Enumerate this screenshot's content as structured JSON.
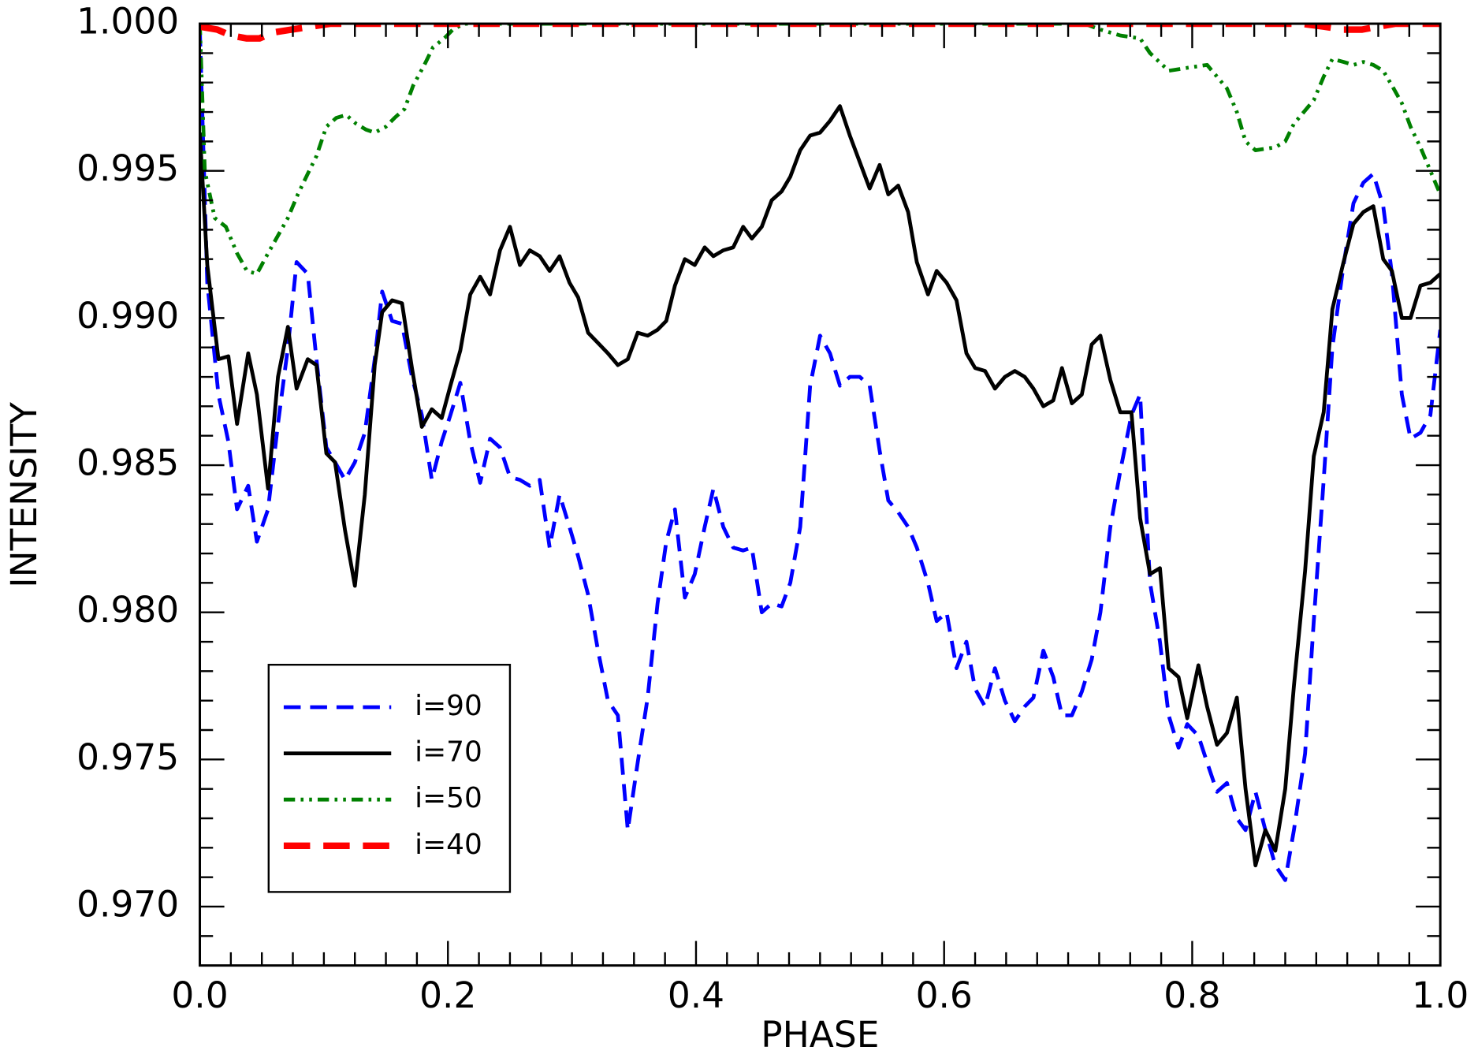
{
  "chart_data": {
    "type": "line",
    "x_label": "PHASE",
    "y_label": "INTENSITY",
    "xlim": [
      0,
      1
    ],
    "ylim": [
      0.968,
      1.0
    ],
    "xticks": [
      {
        "value": 0,
        "label": "0.0"
      },
      0.2,
      0.4,
      0.6,
      0.8,
      {
        "value": 1,
        "label": "1.0"
      }
    ],
    "yticks": [
      {
        "value": 0.97,
        "label": "0.970"
      },
      {
        "value": 0.975,
        "label": "0.975"
      },
      {
        "value": 0.98,
        "label": "0.980"
      },
      {
        "value": 0.985,
        "label": "0.985"
      },
      {
        "value": 0.99,
        "label": "0.990"
      },
      {
        "value": 0.995,
        "label": "0.995"
      },
      {
        "value": 1.0,
        "label": "1.000"
      }
    ],
    "xminorticks": [
      0.025,
      0.05,
      0.075,
      0.1,
      0.125,
      0.15,
      0.175,
      0.225,
      0.25,
      0.275,
      0.3,
      0.325,
      0.35,
      0.375,
      0.425,
      0.45,
      0.475,
      0.5,
      0.525,
      0.55,
      0.575,
      0.625,
      0.65,
      0.675,
      0.7,
      0.725,
      0.75,
      0.775,
      0.825,
      0.85,
      0.875,
      0.9,
      0.925,
      0.95,
      0.975
    ],
    "yminorticks": [
      0.968,
      0.969,
      0.971,
      0.972,
      0.973,
      0.974,
      0.976,
      0.977,
      0.978,
      0.979,
      0.981,
      0.982,
      0.983,
      0.984,
      0.986,
      0.987,
      0.988,
      0.989,
      0.991,
      0.992,
      0.993,
      0.994,
      0.996,
      0.997,
      0.998,
      0.999
    ],
    "grid": false,
    "legend": "lower left",
    "series": [
      {
        "name": "i=90",
        "color": "#0000ff",
        "linestyle": "dashed",
        "x": [
          0.0,
          0.006,
          0.015,
          0.023,
          0.03,
          0.039,
          0.046,
          0.055,
          0.063,
          0.071,
          0.078,
          0.087,
          0.094,
          0.102,
          0.109,
          0.117,
          0.125,
          0.133,
          0.141,
          0.147,
          0.155,
          0.163,
          0.171,
          0.179,
          0.187,
          0.195,
          0.202,
          0.21,
          0.218,
          0.226,
          0.234,
          0.242,
          0.25,
          0.258,
          0.266,
          0.274,
          0.282,
          0.29,
          0.298,
          0.305,
          0.313,
          0.321,
          0.329,
          0.337,
          0.345,
          0.353,
          0.361,
          0.369,
          0.376,
          0.383,
          0.391,
          0.399,
          0.407,
          0.414,
          0.422,
          0.43,
          0.438,
          0.445,
          0.453,
          0.461,
          0.469,
          0.476,
          0.484,
          0.492,
          0.5,
          0.508,
          0.516,
          0.524,
          0.532,
          0.54,
          0.548,
          0.555,
          0.563,
          0.571,
          0.578,
          0.587,
          0.594,
          0.602,
          0.61,
          0.618,
          0.625,
          0.633,
          0.641,
          0.649,
          0.657,
          0.665,
          0.672,
          0.68,
          0.688,
          0.695,
          0.703,
          0.711,
          0.719,
          0.726,
          0.734,
          0.742,
          0.751,
          0.758,
          0.766,
          0.774,
          0.781,
          0.789,
          0.796,
          0.805,
          0.812,
          0.82,
          0.828,
          0.836,
          0.843,
          0.851,
          0.859,
          0.867,
          0.875,
          0.882,
          0.891,
          0.898,
          0.906,
          0.913,
          0.922,
          0.93,
          0.938,
          0.946,
          0.954,
          0.961,
          0.969,
          0.976,
          0.984,
          0.992,
          1.0
        ],
        "values": [
          0.9998,
          0.9912,
          0.9874,
          0.9858,
          0.9835,
          0.9843,
          0.9824,
          0.9835,
          0.9864,
          0.989,
          0.9919,
          0.9915,
          0.9886,
          0.9856,
          0.9851,
          0.9845,
          0.9851,
          0.9861,
          0.9886,
          0.9909,
          0.9899,
          0.9898,
          0.988,
          0.9867,
          0.9845,
          0.9858,
          0.9867,
          0.9878,
          0.9858,
          0.9844,
          0.9859,
          0.9856,
          0.9846,
          0.9845,
          0.9843,
          0.9845,
          0.9822,
          0.984,
          0.9829,
          0.9819,
          0.9806,
          0.9787,
          0.977,
          0.9765,
          0.9726,
          0.9749,
          0.9771,
          0.9803,
          0.9824,
          0.9835,
          0.9805,
          0.9813,
          0.9829,
          0.9842,
          0.9829,
          0.9822,
          0.9821,
          0.9822,
          0.98,
          0.9803,
          0.9802,
          0.981,
          0.9829,
          0.9877,
          0.9894,
          0.9888,
          0.9877,
          0.988,
          0.988,
          0.9877,
          0.9855,
          0.9838,
          0.9834,
          0.9829,
          0.9822,
          0.981,
          0.9797,
          0.98,
          0.9781,
          0.979,
          0.9774,
          0.9768,
          0.9781,
          0.977,
          0.9763,
          0.9768,
          0.9771,
          0.9787,
          0.9778,
          0.9765,
          0.9765,
          0.9773,
          0.9784,
          0.98,
          0.9829,
          0.9848,
          0.9867,
          0.9874,
          0.981,
          0.979,
          0.9765,
          0.9754,
          0.9762,
          0.9758,
          0.9749,
          0.9739,
          0.9742,
          0.973,
          0.9726,
          0.9739,
          0.9726,
          0.9714,
          0.9709,
          0.9726,
          0.9752,
          0.9797,
          0.9845,
          0.989,
          0.9918,
          0.9939,
          0.9946,
          0.9949,
          0.9938,
          0.9915,
          0.9874,
          0.9859,
          0.9861,
          0.9867,
          0.9896
        ]
      },
      {
        "name": "i=70",
        "color": "#000000",
        "linestyle": "solid",
        "x": [
          0.0,
          0.006,
          0.015,
          0.023,
          0.03,
          0.039,
          0.046,
          0.055,
          0.063,
          0.071,
          0.078,
          0.087,
          0.094,
          0.102,
          0.109,
          0.117,
          0.125,
          0.133,
          0.141,
          0.147,
          0.155,
          0.163,
          0.171,
          0.179,
          0.187,
          0.195,
          0.202,
          0.21,
          0.218,
          0.226,
          0.234,
          0.242,
          0.25,
          0.258,
          0.266,
          0.274,
          0.282,
          0.29,
          0.298,
          0.305,
          0.313,
          0.329,
          0.337,
          0.345,
          0.353,
          0.361,
          0.369,
          0.376,
          0.383,
          0.391,
          0.399,
          0.407,
          0.414,
          0.422,
          0.43,
          0.438,
          0.445,
          0.453,
          0.461,
          0.469,
          0.476,
          0.484,
          0.492,
          0.5,
          0.508,
          0.516,
          0.524,
          0.532,
          0.54,
          0.548,
          0.555,
          0.563,
          0.571,
          0.578,
          0.587,
          0.594,
          0.602,
          0.61,
          0.618,
          0.625,
          0.633,
          0.641,
          0.649,
          0.657,
          0.665,
          0.672,
          0.68,
          0.688,
          0.695,
          0.703,
          0.711,
          0.719,
          0.726,
          0.734,
          0.742,
          0.751,
          0.758,
          0.766,
          0.774,
          0.781,
          0.789,
          0.796,
          0.805,
          0.812,
          0.82,
          0.828,
          0.836,
          0.843,
          0.851,
          0.859,
          0.867,
          0.875,
          0.882,
          0.891,
          0.898,
          0.906,
          0.913,
          0.922,
          0.93,
          0.938,
          0.946,
          0.954,
          0.961,
          0.969,
          0.976,
          0.984,
          0.992,
          1.0
        ],
        "values": [
          0.9963,
          0.9918,
          0.9886,
          0.9887,
          0.9864,
          0.9888,
          0.9874,
          0.9842,
          0.988,
          0.9897,
          0.9876,
          0.9886,
          0.9884,
          0.9854,
          0.9851,
          0.9828,
          0.9809,
          0.984,
          0.9884,
          0.9902,
          0.9906,
          0.9905,
          0.9883,
          0.9863,
          0.9869,
          0.9866,
          0.9877,
          0.9889,
          0.9908,
          0.9914,
          0.9908,
          0.9923,
          0.9931,
          0.9918,
          0.9923,
          0.9921,
          0.9916,
          0.9921,
          0.9912,
          0.9907,
          0.9895,
          0.9888,
          0.9884,
          0.9886,
          0.9895,
          0.9894,
          0.9896,
          0.9899,
          0.9911,
          0.992,
          0.9918,
          0.9924,
          0.9921,
          0.9923,
          0.9924,
          0.9931,
          0.9927,
          0.9931,
          0.994,
          0.9943,
          0.9948,
          0.9957,
          0.9962,
          0.9963,
          0.9967,
          0.9972,
          0.9962,
          0.9953,
          0.9944,
          0.9952,
          0.9942,
          0.9945,
          0.9936,
          0.9919,
          0.9908,
          0.9916,
          0.9912,
          0.9906,
          0.9888,
          0.9883,
          0.9882,
          0.9876,
          0.988,
          0.9882,
          0.988,
          0.9876,
          0.987,
          0.9872,
          0.9883,
          0.9871,
          0.9874,
          0.9891,
          0.9894,
          0.9879,
          0.9868,
          0.9868,
          0.9832,
          0.9813,
          0.9815,
          0.9781,
          0.9778,
          0.9764,
          0.9782,
          0.9768,
          0.9755,
          0.9759,
          0.9771,
          0.974,
          0.9714,
          0.9726,
          0.9719,
          0.974,
          0.9775,
          0.9814,
          0.9853,
          0.9868,
          0.9903,
          0.9919,
          0.9932,
          0.9936,
          0.9938,
          0.992,
          0.9916,
          0.99,
          0.99,
          0.9911,
          0.9912,
          0.9915
        ]
      },
      {
        "name": "i=50",
        "color": "#008000",
        "linestyle": "dashdotdot",
        "x": [
          0.0,
          0.004,
          0.012,
          0.021,
          0.03,
          0.038,
          0.046,
          0.055,
          0.063,
          0.071,
          0.079,
          0.087,
          0.094,
          0.102,
          0.11,
          0.118,
          0.126,
          0.134,
          0.141,
          0.15,
          0.157,
          0.165,
          0.172,
          0.181,
          0.188,
          0.197,
          0.204,
          0.213,
          0.713,
          0.726,
          0.742,
          0.758,
          0.766,
          0.781,
          0.796,
          0.812,
          0.828,
          0.836,
          0.843,
          0.851,
          0.867,
          0.875,
          0.882,
          0.898,
          0.906,
          0.913,
          0.922,
          0.93,
          0.938,
          0.946,
          0.954,
          0.961,
          0.969,
          0.976,
          0.984,
          0.992,
          1.0
        ],
        "values": [
          1.0,
          0.995,
          0.9934,
          0.9931,
          0.9922,
          0.9916,
          0.9915,
          0.9922,
          0.9928,
          0.9934,
          0.9942,
          0.9949,
          0.9955,
          0.9965,
          0.9968,
          0.9969,
          0.9966,
          0.9964,
          0.9963,
          0.9965,
          0.9968,
          0.9971,
          0.9979,
          0.9986,
          0.9992,
          0.9995,
          0.9998,
          1.0,
          1.0,
          0.9998,
          0.9996,
          0.9995,
          0.999,
          0.9984,
          0.9985,
          0.9986,
          0.9978,
          0.997,
          0.996,
          0.9957,
          0.9958,
          0.996,
          0.9966,
          0.9974,
          0.9982,
          0.9988,
          0.9987,
          0.9986,
          0.9987,
          0.9986,
          0.9984,
          0.9979,
          0.9973,
          0.9965,
          0.9958,
          0.995,
          0.9942
        ]
      },
      {
        "name": "i=40",
        "color": "#ff0000",
        "linestyle": "longdashed",
        "x": [
          0.0,
          0.014,
          0.025,
          0.038,
          0.048,
          0.059,
          0.074,
          0.09,
          0.105,
          0.888,
          0.906,
          0.922,
          0.937,
          0.95,
          0.964,
          1.0
        ],
        "values": [
          0.9999,
          0.9998,
          0.9996,
          0.9995,
          0.9995,
          0.9997,
          0.9998,
          0.9999,
          1.0,
          1.0,
          0.9999,
          0.9998,
          0.9998,
          0.9999,
          1.0,
          1.0
        ]
      }
    ]
  }
}
